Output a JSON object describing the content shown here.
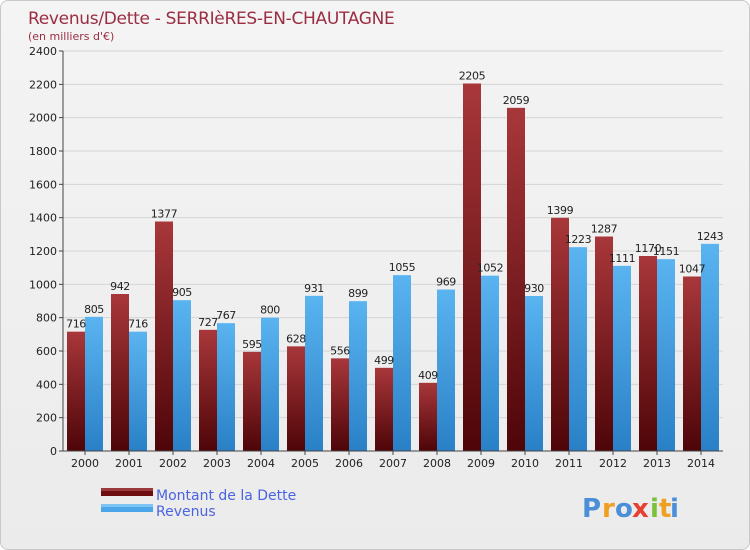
{
  "chart_data": {
    "type": "bar",
    "title": "Revenus/Dette - SERRIèRES-EN-CHAUTAGNE",
    "subtitle": "(en milliers d'€)",
    "categories": [
      "2000",
      "2001",
      "2002",
      "2003",
      "2004",
      "2005",
      "2006",
      "2007",
      "2008",
      "2009",
      "2010",
      "2011",
      "2012",
      "2013",
      "2014"
    ],
    "series": [
      {
        "name": "Montant de la Dette",
        "color": "#8b1f24",
        "values": [
          716,
          942,
          1377,
          727,
          595,
          628,
          556,
          499,
          409,
          2205,
          2059,
          1399,
          1287,
          1170,
          1047
        ]
      },
      {
        "name": "Revenus",
        "color": "#4aa6e8",
        "values": [
          805,
          716,
          905,
          767,
          800,
          931,
          899,
          1055,
          969,
          1052,
          930,
          1223,
          1111,
          1151,
          1243
        ]
      }
    ],
    "ylim": [
      0,
      2400
    ],
    "yticks": [
      0,
      200,
      400,
      600,
      800,
      1000,
      1200,
      1400,
      1600,
      1800,
      2000,
      2200,
      2400
    ],
    "grid": true,
    "legend_position": "bottom-left"
  },
  "logo": {
    "text": "Proxiti",
    "letters": [
      "P",
      "r",
      "o",
      "x",
      "i",
      "t",
      "i"
    ],
    "colors": [
      "#4a8fd8",
      "#f0a020",
      "#4a8fd8",
      "#e84030",
      "#7cbf3a",
      "#f0a020",
      "#4a8fd8"
    ]
  }
}
